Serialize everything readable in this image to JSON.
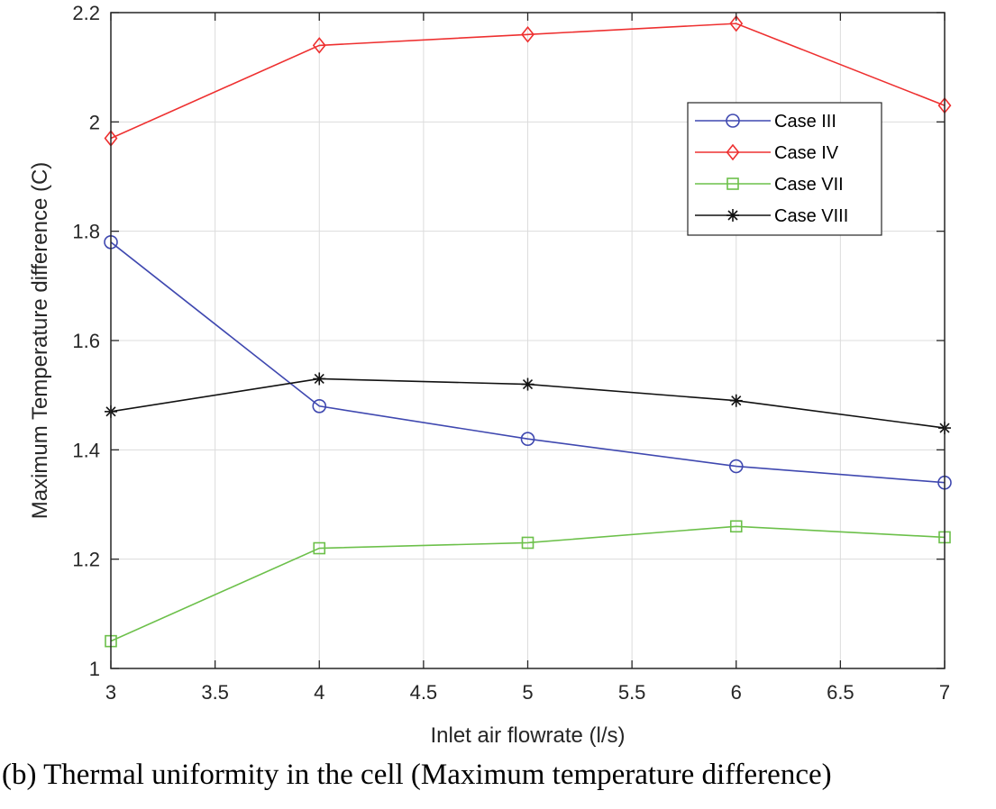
{
  "caption": "(b) Thermal uniformity in the cell (Maximum temperature difference)",
  "chart_data": {
    "type": "line",
    "title": "",
    "xlabel": "Inlet air flowrate (l/s)",
    "ylabel": "Maximum Temperature difference (C)",
    "xlim": [
      3,
      7
    ],
    "ylim": [
      1,
      2.2
    ],
    "xticks": [
      3,
      3.5,
      4,
      4.5,
      5,
      5.5,
      6,
      6.5,
      7
    ],
    "xtick_labels": [
      "3",
      "3.5",
      "4",
      "4.5",
      "5",
      "5.5",
      "6",
      "6.5",
      "7"
    ],
    "yticks": [
      1,
      1.2,
      1.4,
      1.6,
      1.8,
      2,
      2.2
    ],
    "ytick_labels": [
      "1",
      "1.2",
      "1.4",
      "1.6",
      "1.8",
      "2",
      "2.2"
    ],
    "grid": true,
    "legend_position": "upper-right",
    "x": [
      3,
      4,
      5,
      6,
      7
    ],
    "series": [
      {
        "name": "Case III",
        "color": "#3f48b0",
        "marker": "circle",
        "values": [
          1.78,
          1.48,
          1.42,
          1.37,
          1.34
        ]
      },
      {
        "name": "Case IV",
        "color": "#ee3030",
        "marker": "diamond",
        "values": [
          1.97,
          2.14,
          2.16,
          2.18,
          2.03
        ]
      },
      {
        "name": "Case VII",
        "color": "#6cc04a",
        "marker": "square",
        "values": [
          1.05,
          1.22,
          1.23,
          1.26,
          1.24
        ]
      },
      {
        "name": "Case VIII",
        "color": "#111111",
        "marker": "asterisk",
        "values": [
          1.47,
          1.53,
          1.52,
          1.49,
          1.44
        ]
      }
    ]
  }
}
